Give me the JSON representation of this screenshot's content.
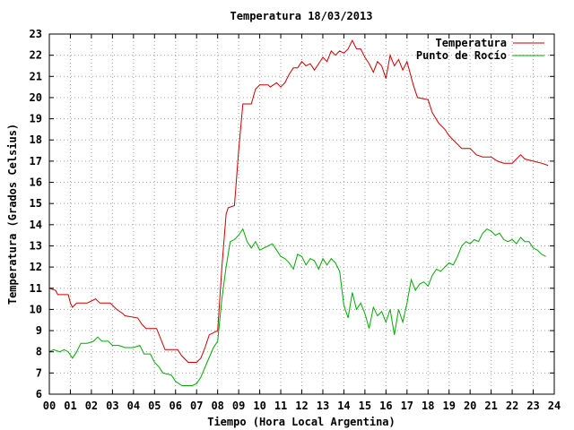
{
  "chart_data": {
    "type": "line",
    "title": "Temperatura 18/03/2013",
    "xlabel": "Tiempo (Hora Local Argentina)",
    "ylabel": "Temperatura (Grados Celsius)",
    "xlim": [
      0,
      24
    ],
    "ylim": [
      6,
      23
    ],
    "x_ticks": [
      "00",
      "01",
      "02",
      "03",
      "04",
      "05",
      "06",
      "07",
      "08",
      "09",
      "10",
      "11",
      "12",
      "13",
      "14",
      "15",
      "16",
      "17",
      "18",
      "19",
      "20",
      "21",
      "22",
      "23",
      "24"
    ],
    "y_ticks": [
      6,
      7,
      8,
      9,
      10,
      11,
      12,
      13,
      14,
      15,
      16,
      17,
      18,
      19,
      20,
      21,
      22,
      23
    ],
    "grid": true,
    "legend_position": "top-right",
    "series": [
      {
        "name": "Temperatura",
        "color": "#cc0000",
        "points": [
          [
            0.0,
            11.0
          ],
          [
            0.3,
            10.9
          ],
          [
            0.4,
            10.7
          ],
          [
            0.9,
            10.7
          ],
          [
            1.0,
            10.3
          ],
          [
            1.1,
            10.1
          ],
          [
            1.3,
            10.3
          ],
          [
            1.8,
            10.3
          ],
          [
            2.0,
            10.4
          ],
          [
            2.2,
            10.5
          ],
          [
            2.4,
            10.3
          ],
          [
            2.9,
            10.3
          ],
          [
            3.2,
            10.0
          ],
          [
            3.5,
            9.8
          ],
          [
            3.6,
            9.7
          ],
          [
            4.2,
            9.6
          ],
          [
            4.4,
            9.3
          ],
          [
            4.6,
            9.1
          ],
          [
            5.1,
            9.1
          ],
          [
            5.3,
            8.6
          ],
          [
            5.5,
            8.1
          ],
          [
            6.1,
            8.1
          ],
          [
            6.3,
            7.8
          ],
          [
            6.6,
            7.5
          ],
          [
            7.0,
            7.5
          ],
          [
            7.2,
            7.7
          ],
          [
            7.4,
            8.2
          ],
          [
            7.6,
            8.8
          ],
          [
            8.0,
            9.0
          ],
          [
            8.2,
            12.0
          ],
          [
            8.4,
            14.5
          ],
          [
            8.5,
            14.8
          ],
          [
            8.8,
            14.9
          ],
          [
            9.0,
            17.5
          ],
          [
            9.2,
            19.7
          ],
          [
            9.6,
            19.7
          ],
          [
            9.8,
            20.4
          ],
          [
            10.0,
            20.6
          ],
          [
            10.4,
            20.6
          ],
          [
            10.5,
            20.5
          ],
          [
            10.8,
            20.7
          ],
          [
            11.0,
            20.5
          ],
          [
            11.2,
            20.7
          ],
          [
            11.4,
            21.1
          ],
          [
            11.6,
            21.4
          ],
          [
            11.8,
            21.4
          ],
          [
            12.0,
            21.7
          ],
          [
            12.2,
            21.5
          ],
          [
            12.4,
            21.6
          ],
          [
            12.6,
            21.3
          ],
          [
            12.8,
            21.6
          ],
          [
            13.0,
            21.9
          ],
          [
            13.2,
            21.7
          ],
          [
            13.4,
            22.2
          ],
          [
            13.6,
            22.0
          ],
          [
            13.8,
            22.2
          ],
          [
            14.0,
            22.1
          ],
          [
            14.2,
            22.3
          ],
          [
            14.4,
            22.7
          ],
          [
            14.6,
            22.3
          ],
          [
            14.8,
            22.3
          ],
          [
            15.0,
            21.9
          ],
          [
            15.2,
            21.6
          ],
          [
            15.4,
            21.2
          ],
          [
            15.6,
            21.7
          ],
          [
            15.8,
            21.5
          ],
          [
            16.0,
            20.9
          ],
          [
            16.2,
            22.0
          ],
          [
            16.4,
            21.5
          ],
          [
            16.6,
            21.8
          ],
          [
            16.8,
            21.3
          ],
          [
            17.0,
            21.7
          ],
          [
            17.3,
            20.6
          ],
          [
            17.5,
            20.0
          ],
          [
            18.0,
            19.9
          ],
          [
            18.2,
            19.3
          ],
          [
            18.5,
            18.8
          ],
          [
            18.8,
            18.5
          ],
          [
            19.0,
            18.2
          ],
          [
            19.3,
            17.9
          ],
          [
            19.6,
            17.6
          ],
          [
            20.0,
            17.6
          ],
          [
            20.3,
            17.3
          ],
          [
            20.6,
            17.2
          ],
          [
            21.0,
            17.2
          ],
          [
            21.3,
            17.0
          ],
          [
            21.6,
            16.9
          ],
          [
            22.0,
            16.9
          ],
          [
            22.2,
            17.1
          ],
          [
            22.4,
            17.3
          ],
          [
            22.6,
            17.1
          ],
          [
            23.0,
            17.0
          ],
          [
            23.4,
            16.9
          ],
          [
            23.7,
            16.8
          ]
        ]
      },
      {
        "name": "Punto de Rocío",
        "color": "#00aa00",
        "points": [
          [
            0.0,
            8.0
          ],
          [
            0.2,
            8.1
          ],
          [
            0.5,
            8.0
          ],
          [
            0.7,
            8.1
          ],
          [
            0.9,
            8.0
          ],
          [
            1.1,
            7.7
          ],
          [
            1.3,
            8.0
          ],
          [
            1.5,
            8.4
          ],
          [
            1.8,
            8.4
          ],
          [
            2.1,
            8.5
          ],
          [
            2.3,
            8.7
          ],
          [
            2.5,
            8.5
          ],
          [
            2.8,
            8.5
          ],
          [
            3.0,
            8.3
          ],
          [
            3.3,
            8.3
          ],
          [
            3.6,
            8.2
          ],
          [
            4.0,
            8.2
          ],
          [
            4.3,
            8.3
          ],
          [
            4.5,
            7.9
          ],
          [
            4.8,
            7.9
          ],
          [
            5.0,
            7.5
          ],
          [
            5.2,
            7.3
          ],
          [
            5.4,
            7.0
          ],
          [
            5.8,
            6.9
          ],
          [
            6.0,
            6.6
          ],
          [
            6.3,
            6.4
          ],
          [
            6.8,
            6.4
          ],
          [
            7.0,
            6.5
          ],
          [
            7.2,
            6.8
          ],
          [
            7.5,
            7.5
          ],
          [
            7.8,
            8.2
          ],
          [
            8.0,
            8.5
          ],
          [
            8.2,
            10.5
          ],
          [
            8.4,
            12.0
          ],
          [
            8.6,
            13.2
          ],
          [
            8.8,
            13.3
          ],
          [
            9.0,
            13.5
          ],
          [
            9.2,
            13.8
          ],
          [
            9.4,
            13.2
          ],
          [
            9.6,
            12.9
          ],
          [
            9.8,
            13.2
          ],
          [
            10.0,
            12.8
          ],
          [
            10.2,
            12.9
          ],
          [
            10.4,
            13.0
          ],
          [
            10.6,
            13.1
          ],
          [
            10.8,
            12.8
          ],
          [
            11.0,
            12.5
          ],
          [
            11.2,
            12.4
          ],
          [
            11.4,
            12.2
          ],
          [
            11.6,
            11.9
          ],
          [
            11.8,
            12.6
          ],
          [
            12.0,
            12.5
          ],
          [
            12.2,
            12.1
          ],
          [
            12.4,
            12.4
          ],
          [
            12.6,
            12.3
          ],
          [
            12.8,
            11.9
          ],
          [
            13.0,
            12.4
          ],
          [
            13.2,
            12.1
          ],
          [
            13.4,
            12.4
          ],
          [
            13.6,
            12.2
          ],
          [
            13.8,
            11.8
          ],
          [
            14.0,
            10.2
          ],
          [
            14.2,
            9.6
          ],
          [
            14.4,
            10.8
          ],
          [
            14.6,
            10.0
          ],
          [
            14.8,
            10.3
          ],
          [
            15.0,
            9.8
          ],
          [
            15.2,
            9.1
          ],
          [
            15.4,
            10.1
          ],
          [
            15.6,
            9.7
          ],
          [
            15.8,
            9.9
          ],
          [
            16.0,
            9.4
          ],
          [
            16.2,
            10.0
          ],
          [
            16.4,
            8.8
          ],
          [
            16.6,
            10.0
          ],
          [
            16.8,
            9.4
          ],
          [
            17.0,
            10.3
          ],
          [
            17.2,
            11.4
          ],
          [
            17.4,
            10.9
          ],
          [
            17.6,
            11.2
          ],
          [
            17.8,
            11.3
          ],
          [
            18.0,
            11.1
          ],
          [
            18.2,
            11.6
          ],
          [
            18.4,
            11.9
          ],
          [
            18.6,
            11.8
          ],
          [
            18.8,
            12.0
          ],
          [
            19.0,
            12.2
          ],
          [
            19.2,
            12.1
          ],
          [
            19.4,
            12.5
          ],
          [
            19.6,
            13.0
          ],
          [
            19.8,
            13.2
          ],
          [
            20.0,
            13.1
          ],
          [
            20.2,
            13.3
          ],
          [
            20.4,
            13.2
          ],
          [
            20.6,
            13.6
          ],
          [
            20.8,
            13.8
          ],
          [
            21.0,
            13.7
          ],
          [
            21.2,
            13.5
          ],
          [
            21.4,
            13.6
          ],
          [
            21.6,
            13.3
          ],
          [
            21.8,
            13.2
          ],
          [
            22.0,
            13.3
          ],
          [
            22.2,
            13.1
          ],
          [
            22.4,
            13.4
          ],
          [
            22.6,
            13.2
          ],
          [
            22.8,
            13.2
          ],
          [
            23.0,
            12.9
          ],
          [
            23.2,
            12.8
          ],
          [
            23.4,
            12.6
          ],
          [
            23.6,
            12.5
          ]
        ]
      }
    ]
  }
}
